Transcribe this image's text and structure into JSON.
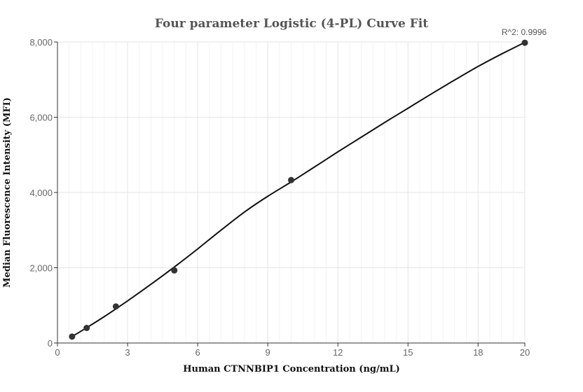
{
  "chart_data": {
    "type": "scatter",
    "title": "Four parameter Logistic (4-PL) Curve Fit",
    "xlabel": "Human CTNNBIP1 Concentration (ng/mL)",
    "ylabel": "Median Fluorescence Intensity (MFI)",
    "xlim": [
      0,
      20
    ],
    "ylim": [
      0,
      8000
    ],
    "x_ticks": [
      0,
      3,
      6,
      9,
      12,
      15,
      18,
      20
    ],
    "x_tick_labels": [
      "0",
      "3",
      "6",
      "9",
      "12",
      "15",
      "18",
      "20"
    ],
    "y_ticks": [
      0,
      2000,
      4000,
      6000,
      8000
    ],
    "y_tick_labels": [
      "0",
      "2,000",
      "4,000",
      "6,000",
      "8,000"
    ],
    "grid": true,
    "series": [
      {
        "kind": "points",
        "x": [
          0.625,
          1.25,
          2.5,
          5,
          10,
          20
        ],
        "y": [
          170,
          400,
          970,
          1930,
          4330,
          7980
        ]
      },
      {
        "kind": "fit-line",
        "x": [
          0.625,
          1,
          2,
          3,
          4,
          5,
          6,
          7,
          8,
          9,
          10,
          11,
          12,
          13,
          14,
          15,
          16,
          17,
          18,
          19,
          20
        ],
        "y": [
          175,
          310,
          700,
          1120,
          1560,
          2020,
          2500,
          3000,
          3480,
          3900,
          4280,
          4680,
          5080,
          5470,
          5860,
          6240,
          6620,
          6990,
          7350,
          7680,
          7990
        ]
      }
    ],
    "annotations": [
      {
        "text": "R^2: 0.9996",
        "x": 20,
        "y": 7980
      }
    ],
    "colors": {
      "points": "#333333",
      "line": "#111111",
      "grid": "#e6e6e6",
      "axis": "#333333"
    }
  }
}
